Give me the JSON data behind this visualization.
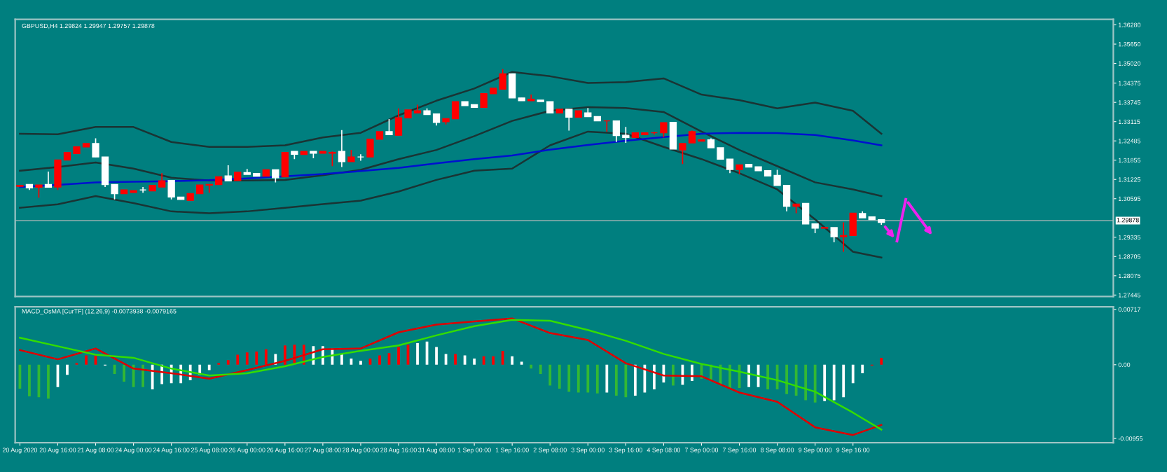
{
  "chart_data": [
    {
      "type": "candlestick",
      "title": "GBPUSD,H4 1.29824 1.29947 1.29757 1.29878",
      "tick_labels": "y",
      "categories": [
        null,
        null,
        null,
        null,
        null,
        null,
        null,
        null,
        null,
        null,
        null,
        null,
        null,
        null,
        null,
        null,
        null,
        null,
        null,
        null,
        null,
        null,
        null,
        null,
        null,
        null,
        null,
        null,
        null,
        null,
        null,
        null,
        null,
        null,
        null,
        null,
        null,
        null,
        null,
        null,
        null,
        null,
        null,
        null,
        null,
        null,
        null,
        null,
        null,
        null,
        null,
        null,
        null,
        null,
        null,
        null,
        null,
        null,
        null,
        null,
        null,
        null,
        null,
        null,
        null,
        null,
        null,
        null,
        null,
        null,
        null,
        null,
        null,
        null,
        null,
        null,
        null,
        null,
        null,
        null,
        null,
        null,
        null,
        null,
        null,
        null,
        null,
        null,
        null,
        null,
        null,
        null,
        null,
        null,
        null,
        null,
        null,
        null,
        null,
        null,
        null,
        null,
        null,
        null,
        null,
        null,
        null,
        null,
        null,
        null,
        null,
        null,
        null,
        null,
        null,
        null
      ],
      "ohlc": [
        [
          1.31,
          1.3103,
          1.3098,
          1.3103
        ],
        [
          1.3106,
          1.3106,
          1.3088,
          1.3095
        ],
        [
          1.3097,
          1.3104,
          1.3063,
          1.3104
        ],
        [
          1.3106,
          1.3148,
          1.3097,
          1.3097
        ],
        [
          1.3098,
          1.3186,
          1.3088,
          1.3186
        ],
        [
          1.3186,
          1.3211,
          1.3186,
          1.3211
        ],
        [
          1.3207,
          1.3229,
          1.3207,
          1.3229
        ],
        [
          1.3229,
          1.324,
          1.3229,
          1.324
        ],
        [
          1.324,
          1.3257,
          1.3196,
          1.3196
        ],
        [
          1.3196,
          1.3196,
          1.3098,
          1.3106
        ],
        [
          1.3106,
          1.3106,
          1.3057,
          1.3076
        ],
        [
          1.3076,
          1.3088,
          1.3076,
          1.3088
        ],
        [
          1.308,
          1.3086,
          1.3079,
          1.3086
        ],
        [
          1.3088,
          1.3098,
          1.3079,
          1.3088
        ],
        [
          1.3085,
          1.3103,
          1.3085,
          1.3103
        ],
        [
          1.3098,
          1.3143,
          1.3098,
          1.3118
        ],
        [
          1.3119,
          1.3119,
          1.3057,
          1.3065
        ],
        [
          1.3065,
          1.3065,
          1.3057,
          1.3057
        ],
        [
          1.3054,
          1.3076,
          1.3054,
          1.3076
        ],
        [
          1.3076,
          1.3104,
          1.3076,
          1.3104
        ],
        [
          1.3104,
          1.3106,
          1.3079,
          1.3106
        ],
        [
          1.3106,
          1.3131,
          1.3106,
          1.3131
        ],
        [
          1.3134,
          1.3169,
          1.3118,
          1.3118
        ],
        [
          1.3119,
          1.3146,
          1.3119,
          1.3146
        ],
        [
          1.3145,
          1.3157,
          1.3139,
          1.3139
        ],
        [
          1.3142,
          1.3142,
          1.3133,
          1.3133
        ],
        [
          1.3133,
          1.3154,
          1.3133,
          1.3154
        ],
        [
          1.3154,
          1.3154,
          1.3113,
          1.3128
        ],
        [
          1.3131,
          1.3211,
          1.3131,
          1.3211
        ],
        [
          1.3214,
          1.3214,
          1.3189,
          1.3205
        ],
        [
          1.3204,
          1.3214,
          1.3204,
          1.3214
        ],
        [
          1.3214,
          1.3214,
          1.3192,
          1.3208
        ],
        [
          1.3208,
          1.3214,
          1.3208,
          1.3214
        ],
        [
          1.3208,
          1.3214,
          1.3166,
          1.3211
        ],
        [
          1.3214,
          1.3284,
          1.3163,
          1.3181
        ],
        [
          1.3181,
          1.3219,
          1.3181,
          1.3196
        ],
        [
          1.3196,
          1.3205,
          1.3184,
          1.3196
        ],
        [
          1.3196,
          1.3254,
          1.3196,
          1.3254
        ],
        [
          1.3254,
          1.3279,
          1.3254,
          1.3279
        ],
        [
          1.3279,
          1.332,
          1.3269,
          1.3269
        ],
        [
          1.3267,
          1.3355,
          1.3267,
          1.3324
        ],
        [
          1.3324,
          1.335,
          1.3324,
          1.335
        ],
        [
          1.334,
          1.3367,
          1.334,
          1.3347
        ],
        [
          1.3347,
          1.3355,
          1.3335,
          1.3335
        ],
        [
          1.3337,
          1.3337,
          1.3299,
          1.3309
        ],
        [
          1.3311,
          1.3321,
          1.3302,
          1.3321
        ],
        [
          1.3321,
          1.3377,
          1.3321,
          1.3377
        ],
        [
          1.3377,
          1.3377,
          1.3364,
          1.3364
        ],
        [
          1.3367,
          1.3367,
          1.3358,
          1.3358
        ],
        [
          1.3358,
          1.3403,
          1.3358,
          1.3403
        ],
        [
          1.3403,
          1.3421,
          1.3403,
          1.3421
        ],
        [
          1.3418,
          1.3483,
          1.3418,
          1.3468
        ],
        [
          1.3468,
          1.3468,
          1.3389,
          1.3389
        ],
        [
          1.3389,
          1.3389,
          1.338,
          1.338
        ],
        [
          1.338,
          1.34,
          1.338,
          1.3385
        ],
        [
          1.3382,
          1.3382,
          1.3377,
          1.3377
        ],
        [
          1.3377,
          1.3377,
          1.334,
          1.334
        ],
        [
          1.334,
          1.3352,
          1.334,
          1.3352
        ],
        [
          1.3352,
          1.3352,
          1.3282,
          1.3326
        ],
        [
          1.3326,
          1.3347,
          1.3326,
          1.3347
        ],
        [
          1.334,
          1.3356,
          1.3328,
          1.3328
        ],
        [
          1.3328,
          1.3328,
          1.3314,
          1.3314
        ],
        [
          1.3314,
          1.3314,
          1.3279,
          1.3314
        ],
        [
          1.3314,
          1.3314,
          1.3245,
          1.3266
        ],
        [
          1.3267,
          1.3294,
          1.3242,
          1.326
        ],
        [
          1.326,
          1.3275,
          1.326,
          1.3275
        ],
        [
          1.3269,
          1.3275,
          1.3269,
          1.3275
        ],
        [
          1.3275,
          1.3279,
          1.3269,
          1.3275
        ],
        [
          1.3275,
          1.3309,
          1.326,
          1.3308
        ],
        [
          1.3309,
          1.3311,
          1.3222,
          1.3222
        ],
        [
          1.3219,
          1.324,
          1.3173,
          1.324
        ],
        [
          1.3242,
          1.3282,
          1.3242,
          1.3279
        ],
        [
          1.3248,
          1.3252,
          1.3248,
          1.3252
        ],
        [
          1.3252,
          1.3257,
          1.3226,
          1.3226
        ],
        [
          1.3226,
          1.3226,
          1.3189,
          1.3189
        ],
        [
          1.3189,
          1.3189,
          1.3143,
          1.3155
        ],
        [
          1.3155,
          1.317,
          1.3139,
          1.317
        ],
        [
          1.3172,
          1.3172,
          1.3163,
          1.3163
        ],
        [
          1.3164,
          1.3164,
          1.3151,
          1.3151
        ],
        [
          1.3151,
          1.3151,
          1.3134,
          1.3134
        ],
        [
          1.3136,
          1.3154,
          1.3103,
          1.3103
        ],
        [
          1.3103,
          1.3103,
          1.3018,
          1.3035
        ],
        [
          1.3035,
          1.3042,
          1.3012,
          1.3042
        ],
        [
          1.3044,
          1.3044,
          1.2977,
          1.2977
        ],
        [
          1.2977,
          1.2977,
          1.2947,
          1.2963
        ],
        [
          1.2963,
          1.2965,
          1.2963,
          1.2965
        ],
        [
          1.2965,
          1.2965,
          1.2917,
          1.2935
        ],
        [
          1.2936,
          1.2982,
          1.2886,
          1.2939
        ],
        [
          1.2939,
          1.3012,
          1.2939,
          1.3012
        ],
        [
          1.3011,
          1.3018,
          1.2997,
          1.2997
        ],
        [
          1.3,
          1.3,
          1.2991,
          1.2991
        ],
        [
          1.2991,
          1.2991,
          1.2974,
          1.2982
        ],
        null,
        null,
        null,
        null,
        null,
        null,
        null,
        null,
        null,
        null,
        null,
        null,
        null,
        null,
        null,
        null,
        null,
        null,
        null,
        null,
        null,
        null,
        null,
        null
      ],
      "colors": [
        "#ff0000",
        "#ffffff",
        "#ff0000",
        "#ffffff",
        "#ff0000",
        "#ff0000",
        "#ff0000",
        "#ff0000",
        "#ffffff",
        "#ffffff",
        "#ffffff",
        "#ff0000",
        "#ff0000",
        "#ffffff",
        "#ff0000",
        "#ff0000",
        "#ffffff",
        "#ffffff",
        "#ff0000",
        "#ff0000",
        "#ff0000",
        "#ff0000",
        "#ffffff",
        "#ff0000",
        "#ffffff",
        "#ffffff",
        "#ff0000",
        "#ffffff",
        "#ff0000",
        "#ffffff",
        "#ff0000",
        "#ffffff",
        "#ff0000",
        "#ff0000",
        "#ffffff",
        "#ff0000",
        "#ffffff",
        "#ff0000",
        "#ff0000",
        "#ffffff",
        "#ff0000",
        "#ff0000",
        "#ff0000",
        "#ffffff",
        "#ffffff",
        "#ff0000",
        "#ff0000",
        "#ffffff",
        "#ffffff",
        "#ff0000",
        "#ff0000",
        "#ff0000",
        "#ffffff",
        "#ffffff",
        "#ff0000",
        "#ffffff",
        "#ffffff",
        "#ff0000",
        "#ffffff",
        "#ff0000",
        "#ffffff",
        "#ffffff",
        "#ff0000",
        "#ffffff",
        "#ffffff",
        "#ff0000",
        "#ff0000",
        "#ff0000",
        "#ff0000",
        "#ffffff",
        "#ff0000",
        "#ff0000",
        "#ff0000",
        "#ffffff",
        "#ffffff",
        "#ffffff",
        "#ff0000",
        "#ffffff",
        "#ffffff",
        "#ffffff",
        "#ffffff",
        "#ffffff",
        "#ff0000",
        "#ffffff",
        "#ffffff",
        "#ff0000",
        "#ffffff",
        "#ff0000",
        "#ff0000",
        "#ffffff",
        "#ffffff",
        "#ffffff",
        null,
        null,
        null,
        null,
        null,
        null,
        null,
        null,
        null,
        null,
        null,
        null,
        null,
        null,
        null,
        null,
        null,
        null,
        null,
        null,
        null,
        null,
        null,
        null
      ],
      "series": [
        {
          "type": "line",
          "color": "#1a3434",
          "values": [
            1.3272,
            null,
            null,
            null,
            1.327,
            null,
            null,
            null,
            1.3294,
            null,
            null,
            null,
            1.3294,
            null,
            null,
            null,
            1.3245,
            null,
            null,
            null,
            1.3229,
            null,
            null,
            null,
            1.3229,
            null,
            null,
            null,
            1.3234,
            null,
            null,
            null,
            1.326,
            null,
            null,
            null,
            1.3275,
            null,
            null,
            null,
            1.3332,
            null,
            null,
            null,
            1.338,
            null,
            null,
            null,
            1.342,
            null,
            null,
            null,
            1.3474,
            null,
            null,
            null,
            1.346,
            null,
            null,
            null,
            1.3438,
            null,
            null,
            null,
            1.3441,
            null,
            null,
            null,
            1.3453,
            null,
            null,
            null,
            1.34,
            null,
            null,
            null,
            1.3382,
            null,
            null,
            null,
            1.3355,
            null,
            null,
            null,
            1.3374,
            null,
            null,
            null,
            1.3347,
            null,
            null,
            1.3272,
            null,
            null,
            null,
            null,
            null,
            null,
            null,
            null,
            null,
            null,
            null,
            null,
            null,
            null,
            null,
            null,
            null,
            null,
            null,
            null,
            null,
            null,
            null,
            null
          ]
        },
        {
          "type": "line",
          "color": "#1a3434",
          "values": [
            1.3151,
            null,
            null,
            null,
            1.3163,
            null,
            null,
            null,
            1.3178,
            null,
            null,
            null,
            1.3158,
            null,
            null,
            null,
            1.3128,
            null,
            null,
            null,
            1.3119,
            null,
            null,
            null,
            1.3119,
            null,
            null,
            null,
            1.3121,
            null,
            null,
            null,
            1.3136,
            null,
            null,
            null,
            1.3154,
            null,
            null,
            null,
            1.3189,
            null,
            null,
            null,
            1.3219,
            null,
            null,
            null,
            1.3264,
            null,
            null,
            null,
            1.3314,
            null,
            null,
            null,
            1.3347,
            null,
            null,
            null,
            1.3359,
            null,
            null,
            null,
            1.3356,
            null,
            null,
            null,
            1.3343,
            null,
            null,
            null,
            1.3279,
            null,
            null,
            null,
            1.3219,
            null,
            null,
            null,
            1.3166,
            null,
            null,
            null,
            1.3113,
            null,
            null,
            null,
            1.309,
            null,
            null,
            1.3068,
            null,
            null,
            null,
            null,
            null,
            null,
            null,
            null,
            null,
            null,
            null,
            null,
            null,
            null,
            null,
            null,
            null,
            null,
            null,
            null,
            null,
            null,
            null,
            null
          ]
        },
        {
          "type": "line",
          "color": "#1a3434",
          "values": [
            1.303,
            null,
            null,
            null,
            1.3041,
            null,
            null,
            null,
            1.3068,
            null,
            null,
            null,
            1.3045,
            null,
            null,
            null,
            1.3018,
            null,
            null,
            null,
            1.3012,
            null,
            null,
            null,
            1.3018,
            null,
            null,
            null,
            1.303,
            null,
            null,
            null,
            1.3042,
            null,
            null,
            null,
            1.3053,
            null,
            null,
            null,
            1.3083,
            null,
            null,
            null,
            1.3121,
            null,
            null,
            null,
            1.3151,
            null,
            null,
            null,
            1.3158,
            null,
            null,
            null,
            1.3234,
            null,
            null,
            null,
            1.3279,
            null,
            null,
            null,
            1.3272,
            null,
            null,
            null,
            1.3229,
            null,
            null,
            null,
            1.3189,
            null,
            null,
            null,
            1.3143,
            null,
            null,
            null,
            1.309,
            null,
            null,
            null,
            1.2992,
            null,
            null,
            null,
            1.2886,
            null,
            null,
            1.2867,
            null,
            null,
            null,
            null,
            null,
            null,
            null,
            null,
            null,
            null,
            null,
            null,
            null,
            null,
            null,
            null,
            null,
            null,
            null,
            null,
            null,
            null,
            null,
            null
          ]
        },
        {
          "type": "line",
          "color": "#0010d0",
          "values": [
            1.3098,
            null,
            null,
            null,
            1.3105,
            null,
            null,
            null,
            1.3113,
            null,
            null,
            null,
            1.3115,
            null,
            null,
            null,
            1.3117,
            null,
            null,
            null,
            1.312,
            null,
            null,
            null,
            1.3126,
            null,
            null,
            null,
            1.3133,
            null,
            null,
            null,
            1.314,
            null,
            null,
            null,
            1.315,
            null,
            null,
            null,
            1.316,
            null,
            null,
            null,
            1.3175,
            null,
            null,
            null,
            1.3189,
            null,
            null,
            null,
            1.3201,
            null,
            null,
            null,
            1.322,
            null,
            null,
            null,
            1.3235,
            null,
            null,
            null,
            1.3249,
            null,
            null,
            null,
            1.3261,
            null,
            null,
            null,
            1.3272,
            null,
            null,
            null,
            1.3275,
            null,
            null,
            null,
            1.3274,
            null,
            null,
            null,
            1.3268,
            null,
            null,
            null,
            1.325,
            null,
            null,
            1.3234,
            null,
            null,
            null,
            null,
            null,
            null,
            null,
            null,
            null,
            null,
            null,
            null,
            null,
            null,
            null,
            null,
            null,
            null,
            null,
            null,
            null,
            null,
            null,
            null
          ]
        }
      ],
      "ref_lines": [
        {
          "axis": "y",
          "value": 1.29878,
          "label": "1.29878",
          "color": "#6fa3a3"
        }
      ],
      "ylim": [
        1.274,
        1.3646
      ],
      "yticks": [
        {
          "value": 1.3628,
          "label": "1.36280"
        },
        {
          "value": 1.3565,
          "label": "1.35650"
        },
        {
          "value": 1.3502,
          "label": "1.35020"
        },
        {
          "value": 1.34375,
          "label": "1.34375"
        },
        {
          "value": 1.33745,
          "label": "1.33745"
        },
        {
          "value": 1.33115,
          "label": "1.33115"
        },
        {
          "value": 1.32485,
          "label": "1.32485"
        },
        {
          "value": 1.31855,
          "label": "1.31855"
        },
        {
          "value": 1.31225,
          "label": "1.31225"
        },
        {
          "value": 1.30595,
          "label": "1.30595"
        },
        {
          "value": 1.29335,
          "label": "1.29335"
        },
        {
          "value": 1.28705,
          "label": "1.28705"
        },
        {
          "value": 1.28075,
          "label": "1.28075"
        },
        {
          "value": 1.27445,
          "label": "1.27445"
        }
      ]
    },
    {
      "type": "bar",
      "title": "MACD_OsMA [CurTF] (12,26,9) -0.0073938 -0.0079165",
      "categories": [
        "20 Aug 2020",
        null,
        null,
        null,
        "20 Aug 16:00",
        null,
        null,
        null,
        "21 Aug 08:00",
        null,
        null,
        null,
        "24 Aug 00:00",
        null,
        null,
        null,
        "24 Aug 16:00",
        null,
        null,
        null,
        "25 Aug 08:00",
        null,
        null,
        null,
        "26 Aug 00:00",
        null,
        null,
        null,
        "26 Aug 16:00",
        null,
        null,
        null,
        "27 Aug 08:00",
        null,
        null,
        null,
        "28 Aug 00:00",
        null,
        null,
        null,
        "28 Aug 16:00",
        null,
        null,
        null,
        "31 Aug 08:00",
        null,
        null,
        null,
        "1 Sep 00:00",
        null,
        null,
        null,
        "1 Sep 16:00",
        null,
        null,
        null,
        "2 Sep 08:00",
        null,
        null,
        null,
        "3 Sep 00:00",
        null,
        null,
        null,
        "3 Sep 16:00",
        null,
        null,
        null,
        "4 Sep 08:00",
        null,
        null,
        null,
        "7 Sep 00:00",
        null,
        null,
        null,
        "7 Sep 16:00",
        null,
        null,
        null,
        "8 Sep 08:00",
        null,
        null,
        null,
        "9 Sep 00:00",
        null,
        null,
        null,
        "9 Sep 16:00",
        null,
        null,
        null,
        null,
        null,
        null,
        null,
        null,
        null,
        null,
        null,
        null,
        null,
        null,
        null,
        null,
        null,
        null,
        null,
        null,
        null,
        null,
        null,
        null,
        null,
        null,
        null
      ],
      "series": [
        {
          "type": "bar",
          "values": [
            -0.0031,
            -0.0041,
            -0.0042,
            -0.0044,
            -0.0029,
            -0.0013,
            0.0002,
            0.0012,
            0.0012,
            -0.0001,
            -0.0012,
            -0.0022,
            -0.0029,
            -0.0029,
            -0.0032,
            -0.0025,
            -0.0024,
            -0.0024,
            -0.002,
            -0.0013,
            -0.0007,
            0.0002,
            0.0006,
            0.0013,
            0.0016,
            0.0017,
            0.002,
            0.0014,
            0.0025,
            0.0026,
            0.0026,
            0.0024,
            0.0024,
            0.0021,
            0.0014,
            0.0008,
            0.0005,
            0.0008,
            0.0012,
            0.0015,
            0.0023,
            0.0026,
            0.0028,
            0.003,
            0.0023,
            0.0014,
            0.0014,
            0.0012,
            0.0008,
            0.0011,
            0.0011,
            0.0018,
            0.0011,
            0.0004,
            -0.0005,
            -0.0012,
            -0.0027,
            -0.0031,
            -0.0035,
            -0.0036,
            -0.0036,
            -0.0037,
            -0.0036,
            -0.004,
            -0.0042,
            -0.004,
            -0.0036,
            -0.0032,
            -0.0023,
            -0.0027,
            -0.0026,
            -0.0021,
            -0.0018,
            -0.0021,
            -0.0026,
            -0.003,
            -0.003,
            -0.0029,
            -0.0029,
            -0.0032,
            -0.0032,
            -0.0038,
            -0.004,
            -0.0046,
            -0.0049,
            -0.0047,
            -0.0046,
            -0.0042,
            -0.0024,
            -0.0011,
            -0.0001,
            0.0009,
            null,
            null,
            null,
            null,
            null,
            null,
            null,
            null,
            null,
            null,
            null,
            null,
            null,
            null,
            null,
            null,
            null,
            null,
            null,
            null,
            null,
            null,
            null,
            null
          ],
          "colors": [
            "#33b833",
            "#33b833",
            "#33b833",
            "#33b833",
            "#ffffff",
            "#ffffff",
            "#ff0000",
            "#ff0000",
            "#ff0000",
            "#ffffff",
            "#33b833",
            "#33b833",
            "#33b833",
            "#33b833",
            "#ffffff",
            "#ffffff",
            "#ffffff",
            "#ffffff",
            "#ffffff",
            "#ffffff",
            "#ffffff",
            "#ff0000",
            "#ff0000",
            "#ff0000",
            "#ff0000",
            "#ff0000",
            "#ff0000",
            "#ffffff",
            "#ff0000",
            "#ff0000",
            "#ff0000",
            "#ffffff",
            "#ffffff",
            "#ffffff",
            "#ffffff",
            "#ffffff",
            "#ffffff",
            "#ff0000",
            "#ff0000",
            "#ff0000",
            "#ff0000",
            "#ff0000",
            "#ffffff",
            "#ffffff",
            "#ffffff",
            "#ffffff",
            "#ff0000",
            "#ffffff",
            "#ffffff",
            "#ff0000",
            "#ff0000",
            "#ff0000",
            "#ffffff",
            "#ffffff",
            "#33b833",
            "#33b833",
            "#33b833",
            "#33b833",
            "#33b833",
            "#33b833",
            "#33b833",
            "#33b833",
            "#ffffff",
            "#33b833",
            "#33b833",
            "#ffffff",
            "#ffffff",
            "#ffffff",
            "#ffffff",
            "#33b833",
            "#ffffff",
            "#ffffff",
            "#33b833",
            "#33b833",
            "#33b833",
            "#33b833",
            "#33b833",
            "#ffffff",
            "#ffffff",
            "#33b833",
            "#33b833",
            "#33b833",
            "#33b833",
            "#33b833",
            "#33b833",
            "#ffffff",
            "#ffffff",
            "#ffffff",
            "#ffffff",
            "#ffffff",
            "#ff0000",
            "#ff0000",
            null,
            null,
            null,
            null,
            null,
            null,
            null,
            null,
            null,
            null,
            null,
            null,
            null,
            null,
            null,
            null,
            null,
            null,
            null,
            null,
            null,
            null,
            null,
            null
          ]
        },
        {
          "type": "line",
          "color": "#e00000",
          "values": [
            0.0019,
            null,
            null,
            null,
            0.0007,
            null,
            null,
            null,
            0.0021,
            null,
            null,
            null,
            -0.0005,
            null,
            null,
            null,
            -0.0011,
            null,
            null,
            null,
            -0.0018,
            null,
            null,
            null,
            -0.0007,
            null,
            null,
            null,
            0.0005,
            null,
            null,
            null,
            0.002,
            null,
            null,
            null,
            0.0021,
            null,
            null,
            null,
            0.0042,
            null,
            null,
            null,
            0.0052,
            null,
            null,
            null,
            0.0056,
            null,
            null,
            null,
            0.006,
            null,
            null,
            null,
            0.0041,
            null,
            null,
            null,
            0.0032,
            null,
            null,
            null,
            0.0002,
            null,
            null,
            null,
            -0.0014,
            null,
            null,
            null,
            -0.0015,
            null,
            null,
            null,
            -0.0036,
            null,
            null,
            null,
            -0.0048,
            null,
            null,
            null,
            -0.0081,
            null,
            null,
            null,
            -0.0091,
            null,
            null,
            -0.0078,
            null,
            null,
            null,
            null,
            null,
            null,
            null,
            null,
            null,
            null,
            null,
            null,
            null,
            null,
            null,
            null,
            null,
            null,
            null,
            null,
            null,
            null,
            null,
            null
          ]
        },
        {
          "type": "line",
          "color": "#33dd00",
          "values": [
            0.0035,
            null,
            null,
            null,
            0.0024,
            null,
            null,
            null,
            0.0013,
            null,
            null,
            null,
            0.0009,
            null,
            null,
            null,
            -0.0005,
            null,
            null,
            null,
            -0.0014,
            null,
            null,
            null,
            -0.0011,
            null,
            null,
            null,
            -0.0002,
            null,
            null,
            null,
            0.001,
            null,
            null,
            null,
            0.0018,
            null,
            null,
            null,
            0.0025,
            null,
            null,
            null,
            0.0038,
            null,
            null,
            null,
            0.005,
            null,
            null,
            null,
            0.0058,
            null,
            null,
            null,
            0.0057,
            null,
            null,
            null,
            0.0045,
            null,
            null,
            null,
            0.0031,
            null,
            null,
            null,
            0.0014,
            null,
            null,
            null,
            0.0001,
            null,
            null,
            null,
            -0.0009,
            null,
            null,
            null,
            -0.002,
            null,
            null,
            null,
            -0.0035,
            null,
            null,
            null,
            -0.0062,
            null,
            null,
            -0.0084,
            null,
            null,
            null,
            null,
            null,
            null,
            null,
            null,
            null,
            null,
            null,
            null,
            null,
            null,
            null,
            null,
            null,
            null,
            null,
            null,
            null,
            null,
            null,
            null
          ]
        }
      ],
      "ylim": [
        -0.0101,
        0.0075
      ],
      "yticks": [
        {
          "value": 0.00717,
          "label": "0.00717"
        },
        {
          "value": 0,
          "label": "0.00"
        },
        {
          "value": -0.00955,
          "label": "-0.00955"
        }
      ]
    }
  ]
}
